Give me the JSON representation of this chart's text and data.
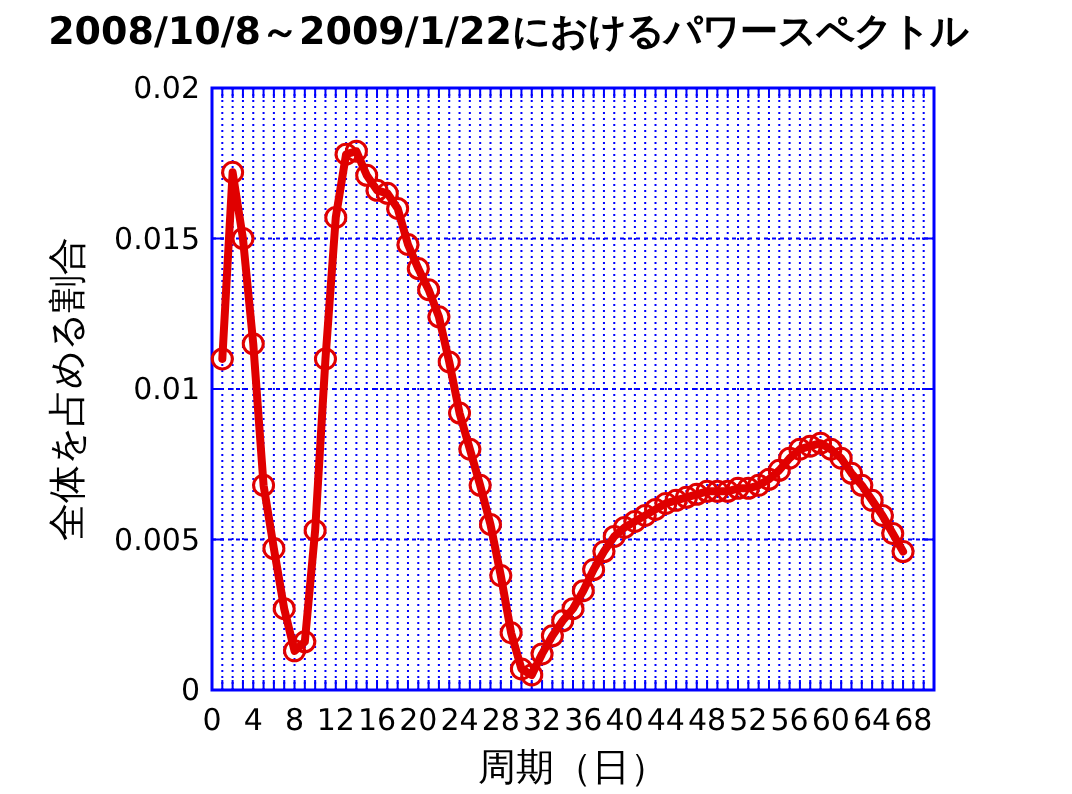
{
  "chart_data": {
    "type": "line",
    "title": "2008/10/8～2009/1/22におけるパワースペクトル",
    "xlabel": "周期（日）",
    "ylabel": "全体を占める割合",
    "xlim": [
      0,
      70
    ],
    "ylim": [
      0,
      0.02
    ],
    "xticks": [
      0,
      {
        "value": 1,
        "label": null
      },
      {
        "value": 2,
        "label": null
      },
      {
        "value": 3,
        "label": null
      },
      4,
      {
        "value": 5,
        "label": null
      },
      {
        "value": 6,
        "label": null
      },
      {
        "value": 7,
        "label": null
      },
      8,
      {
        "value": 9,
        "label": null
      },
      {
        "value": 10,
        "label": null
      },
      {
        "value": 11,
        "label": null
      },
      12,
      {
        "value": 13,
        "label": null
      },
      {
        "value": 14,
        "label": null
      },
      {
        "value": 15,
        "label": null
      },
      16,
      {
        "value": 17,
        "label": null
      },
      {
        "value": 18,
        "label": null
      },
      {
        "value": 19,
        "label": null
      },
      20,
      {
        "value": 21,
        "label": null
      },
      {
        "value": 22,
        "label": null
      },
      {
        "value": 23,
        "label": null
      },
      24,
      {
        "value": 25,
        "label": null
      },
      {
        "value": 26,
        "label": null
      },
      {
        "value": 27,
        "label": null
      },
      28,
      {
        "value": 29,
        "label": null
      },
      {
        "value": 30,
        "label": null
      },
      {
        "value": 31,
        "label": null
      },
      32,
      {
        "value": 33,
        "label": null
      },
      {
        "value": 34,
        "label": null
      },
      {
        "value": 35,
        "label": null
      },
      36,
      {
        "value": 37,
        "label": null
      },
      {
        "value": 38,
        "label": null
      },
      {
        "value": 39,
        "label": null
      },
      40,
      {
        "value": 41,
        "label": null
      },
      {
        "value": 42,
        "label": null
      },
      {
        "value": 43,
        "label": null
      },
      44,
      {
        "value": 45,
        "label": null
      },
      {
        "value": 46,
        "label": null
      },
      {
        "value": 47,
        "label": null
      },
      48,
      {
        "value": 49,
        "label": null
      },
      {
        "value": 50,
        "label": null
      },
      {
        "value": 51,
        "label": null
      },
      52,
      {
        "value": 53,
        "label": null
      },
      {
        "value": 54,
        "label": null
      },
      {
        "value": 55,
        "label": null
      },
      56,
      {
        "value": 57,
        "label": null
      },
      {
        "value": 58,
        "label": null
      },
      {
        "value": 59,
        "label": null
      },
      60,
      {
        "value": 61,
        "label": null
      },
      {
        "value": 62,
        "label": null
      },
      {
        "value": 63,
        "label": null
      },
      64,
      {
        "value": 65,
        "label": null
      },
      {
        "value": 66,
        "label": null
      },
      {
        "value": 67,
        "label": null
      },
      68,
      {
        "value": 69,
        "label": null
      },
      {
        "value": 70,
        "label": null
      }
    ],
    "yticks": [
      0,
      0.005,
      0.01,
      0.015,
      0.02
    ],
    "grid": true,
    "marker": "circle",
    "line_style": "solid",
    "x": [
      1,
      2,
      3,
      4,
      5,
      6,
      7,
      8,
      9,
      10,
      11,
      12,
      13,
      14,
      15,
      16,
      17,
      18,
      19,
      20,
      21,
      22,
      23,
      24,
      25,
      26,
      27,
      28,
      29,
      30,
      31,
      32,
      33,
      34,
      35,
      36,
      37,
      38,
      39,
      40,
      41,
      42,
      43,
      44,
      45,
      46,
      47,
      48,
      49,
      50,
      51,
      52,
      53,
      54,
      55,
      56,
      57,
      58,
      59,
      60,
      61,
      62,
      63,
      64,
      65,
      66,
      67
    ],
    "series": [
      {
        "color": "#e00000",
        "values": [
          0.011,
          0.0172,
          0.015,
          0.0115,
          0.0068,
          0.0047,
          0.0027,
          0.0013,
          0.0016,
          0.0053,
          0.011,
          0.0157,
          0.0178,
          0.0179,
          0.0171,
          0.0166,
          0.0165,
          0.016,
          0.0148,
          0.014,
          0.0133,
          0.0124,
          0.0109,
          0.0092,
          0.008,
          0.0068,
          0.0055,
          0.0038,
          0.0019,
          0.0007,
          0.0005,
          0.0012,
          0.0018,
          0.0023,
          0.0027,
          0.0033,
          0.004,
          0.0046,
          0.0051,
          0.0054,
          0.0056,
          0.0058,
          0.006,
          0.0062,
          0.0063,
          0.0064,
          0.0065,
          0.0066,
          0.0066,
          0.0066,
          0.0067,
          0.0067,
          0.0068,
          0.007,
          0.0073,
          0.0077,
          0.008,
          0.0081,
          0.0082,
          0.008,
          0.0077,
          0.0072,
          0.0068,
          0.0063,
          0.0058,
          0.0052,
          0.0046
        ]
      }
    ]
  }
}
